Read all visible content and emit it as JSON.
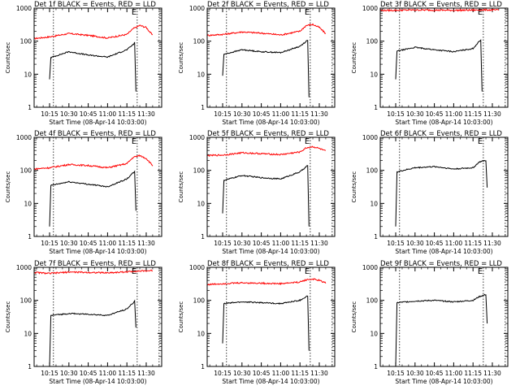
{
  "chart_data": [
    {
      "type": "line",
      "title": "Det 1f BLACK = Events, RED = LLD",
      "xlabel": "Start Time (08-Apr-14 10:03:00)",
      "ylabel": "Counts/sec",
      "x_ticks": [
        "10:15",
        "10:30",
        "10:45",
        "11:00",
        "11:15",
        "11:30"
      ],
      "y_ticks": [
        "1",
        "10",
        "100",
        "1000"
      ],
      "ylim": [
        1,
        1000
      ],
      "y_scale": "log",
      "marker": "E",
      "series": [
        {
          "color": "#ff0000",
          "x": [
            "10:03",
            "10:15",
            "10:30",
            "10:45",
            "11:00",
            "11:15",
            "11:20",
            "11:25",
            "11:30",
            "11:35"
          ],
          "y": [
            120,
            135,
            170,
            150,
            125,
            160,
            240,
            300,
            260,
            150
          ]
        },
        {
          "color": "#000000",
          "x": [
            "10:15",
            "10:16",
            "10:30",
            "10:45",
            "11:00",
            "11:15",
            "11:20",
            "11:21",
            "11:22"
          ],
          "y": [
            7,
            32,
            48,
            38,
            33,
            55,
            80,
            90,
            3
          ]
        }
      ]
    },
    {
      "type": "line",
      "title": "Det 2f BLACK = Events, RED = LLD",
      "xlabel": "Start Time (08-Apr-14 10:03:00)",
      "ylabel": "Counts/sec",
      "x_ticks": [
        "10:15",
        "10:30",
        "10:45",
        "11:00",
        "11:15",
        "11:30"
      ],
      "y_ticks": [
        "1",
        "10",
        "100",
        "1000"
      ],
      "ylim": [
        1,
        1000
      ],
      "y_scale": "log",
      "marker": "E",
      "series": [
        {
          "color": "#ff0000",
          "x": [
            "10:03",
            "10:15",
            "10:30",
            "10:45",
            "11:00",
            "11:15",
            "11:20",
            "11:25",
            "11:30",
            "11:35"
          ],
          "y": [
            150,
            160,
            190,
            175,
            155,
            200,
            300,
            320,
            260,
            170
          ]
        },
        {
          "color": "#000000",
          "x": [
            "10:15",
            "10:16",
            "10:30",
            "10:45",
            "11:00",
            "11:15",
            "11:20",
            "11:21",
            "11:22"
          ],
          "y": [
            9,
            40,
            55,
            48,
            45,
            70,
            100,
            105,
            2
          ]
        }
      ]
    },
    {
      "type": "line",
      "title": "Det 3f BLACK = Events, RED = LLD",
      "xlabel": "Start Time (08-Apr-14 10:03:00)",
      "ylabel": "Counts/sec",
      "x_ticks": [
        "10:15",
        "10:30",
        "10:45",
        "11:00",
        "11:15",
        "11:30"
      ],
      "y_ticks": [
        "1",
        "10",
        "100",
        "1000"
      ],
      "ylim": [
        1,
        1000
      ],
      "y_scale": "log",
      "marker": "E",
      "series": [
        {
          "color": "#ff0000",
          "x": [
            "10:03",
            "10:15",
            "10:30",
            "10:45",
            "11:00",
            "11:15",
            "11:20",
            "11:25",
            "11:30",
            "11:35"
          ],
          "y": [
            850,
            860,
            880,
            870,
            860,
            870,
            880,
            880,
            880,
            870
          ]
        },
        {
          "color": "#000000",
          "x": [
            "10:15",
            "10:16",
            "10:30",
            "10:45",
            "11:00",
            "11:15",
            "11:20",
            "11:21",
            "11:22"
          ],
          "y": [
            7,
            50,
            65,
            55,
            48,
            60,
            100,
            110,
            3
          ]
        }
      ]
    },
    {
      "type": "line",
      "title": "Det 4f BLACK = Events, RED = LLD",
      "xlabel": "Start Time (08-Apr-14 10:03:00)",
      "ylabel": "Counts/sec",
      "x_ticks": [
        "10:15",
        "10:30",
        "10:45",
        "11:00",
        "11:15",
        "11:30"
      ],
      "y_ticks": [
        "1",
        "10",
        "100",
        "1000"
      ],
      "ylim": [
        1,
        1000
      ],
      "y_scale": "log",
      "marker": "E",
      "series": [
        {
          "color": "#ff0000",
          "x": [
            "10:03",
            "10:15",
            "10:30",
            "10:45",
            "11:00",
            "11:15",
            "11:20",
            "11:25",
            "11:30",
            "11:35"
          ],
          "y": [
            110,
            120,
            150,
            140,
            120,
            160,
            250,
            280,
            230,
            140
          ]
        },
        {
          "color": "#000000",
          "x": [
            "10:15",
            "10:16",
            "10:30",
            "10:45",
            "11:00",
            "11:15",
            "11:20",
            "11:21",
            "11:22"
          ],
          "y": [
            2,
            35,
            45,
            38,
            32,
            55,
            85,
            90,
            6
          ]
        }
      ]
    },
    {
      "type": "line",
      "title": "Det 5f BLACK = Events, RED = LLD",
      "xlabel": "Start Time (08-Apr-14 10:03:00)",
      "ylabel": "Counts/sec",
      "x_ticks": [
        "10:15",
        "10:30",
        "10:45",
        "11:00",
        "11:15",
        "11:30"
      ],
      "y_ticks": [
        "1",
        "10",
        "100",
        "1000"
      ],
      "ylim": [
        1,
        1000
      ],
      "y_scale": "log",
      "marker": "E",
      "series": [
        {
          "color": "#ff0000",
          "x": [
            "10:03",
            "10:15",
            "10:30",
            "10:45",
            "11:00",
            "11:15",
            "11:20",
            "11:25",
            "11:30",
            "11:35"
          ],
          "y": [
            280,
            290,
            340,
            320,
            300,
            360,
            480,
            520,
            460,
            380
          ]
        },
        {
          "color": "#000000",
          "x": [
            "10:15",
            "10:16",
            "10:30",
            "10:45",
            "11:00",
            "11:15",
            "11:20",
            "11:21",
            "11:22"
          ],
          "y": [
            5,
            50,
            70,
            60,
            55,
            90,
            130,
            140,
            2
          ]
        }
      ]
    },
    {
      "type": "line",
      "title": "Det 6f BLACK = Events, RED = LLD",
      "xlabel": "Start Time (08-Apr-14 10:03:00)",
      "ylabel": "Counts/sec",
      "x_ticks": [
        "10:15",
        "10:30",
        "10:45",
        "11:00",
        "11:15",
        "11:30"
      ],
      "y_ticks": [
        "1",
        "10",
        "100",
        "1000"
      ],
      "ylim": [
        1,
        1000
      ],
      "y_scale": "log",
      "marker": "E",
      "series": [
        {
          "color": "#000000",
          "x": [
            "10:15",
            "10:16",
            "10:30",
            "10:45",
            "11:00",
            "11:15",
            "11:20",
            "11:25",
            "11:26"
          ],
          "y": [
            2,
            90,
            120,
            130,
            110,
            120,
            180,
            200,
            30
          ]
        }
      ]
    },
    {
      "type": "line",
      "title": "Det 7f BLACK = Events, RED = LLD",
      "xlabel": "Start Time (08-Apr-14 10:03:00)",
      "ylabel": "Counts/sec",
      "x_ticks": [
        "10:15",
        "10:30",
        "10:45",
        "11:00",
        "11:15",
        "11:30"
      ],
      "y_ticks": [
        "1",
        "10",
        "100",
        "1000"
      ],
      "ylim": [
        1,
        1000
      ],
      "y_scale": "log",
      "marker": "E",
      "series": [
        {
          "color": "#ff0000",
          "x": [
            "10:03",
            "10:15",
            "10:30",
            "10:45",
            "11:00",
            "11:15",
            "11:20",
            "11:25",
            "11:30",
            "11:35"
          ],
          "y": [
            700,
            650,
            720,
            700,
            680,
            730,
            760,
            770,
            780,
            800
          ]
        },
        {
          "color": "#000000",
          "x": [
            "10:15",
            "10:16",
            "10:30",
            "10:45",
            "11:00",
            "11:15",
            "11:20",
            "11:21",
            "11:22"
          ],
          "y": [
            1,
            35,
            40,
            38,
            35,
            55,
            85,
            95,
            15
          ]
        }
      ]
    },
    {
      "type": "line",
      "title": "Det 8f BLACK = Events, RED = LLD",
      "xlabel": "Start Time (08-Apr-14 10:03:00)",
      "ylabel": "Counts/sec",
      "x_ticks": [
        "10:15",
        "10:30",
        "10:45",
        "11:00",
        "11:15",
        "11:30"
      ],
      "y_ticks": [
        "1",
        "10",
        "100",
        "1000"
      ],
      "ylim": [
        1,
        1000
      ],
      "y_scale": "log",
      "marker": "E",
      "series": [
        {
          "color": "#ff0000",
          "x": [
            "10:03",
            "10:15",
            "10:30",
            "10:45",
            "11:00",
            "11:15",
            "11:20",
            "11:25",
            "11:30",
            "11:35"
          ],
          "y": [
            300,
            320,
            340,
            330,
            320,
            360,
            420,
            440,
            400,
            340
          ]
        },
        {
          "color": "#000000",
          "x": [
            "10:15",
            "10:16",
            "10:30",
            "10:45",
            "11:00",
            "11:15",
            "11:20",
            "11:21",
            "11:22"
          ],
          "y": [
            5,
            80,
            90,
            85,
            80,
            100,
            130,
            135,
            3
          ]
        }
      ]
    },
    {
      "type": "line",
      "title": "Det 9f BLACK = Events, RED = LLD",
      "xlabel": "Start Time (08-Apr-14 10:03:00)",
      "ylabel": "Counts/sec",
      "x_ticks": [
        "10:15",
        "10:30",
        "10:45",
        "11:00",
        "11:15",
        "11:30"
      ],
      "y_ticks": [
        "1",
        "10",
        "100",
        "1000"
      ],
      "ylim": [
        1,
        1000
      ],
      "y_scale": "log",
      "marker": "E",
      "series": [
        {
          "color": "#000000",
          "x": [
            "10:15",
            "10:16",
            "10:30",
            "10:45",
            "11:00",
            "11:15",
            "11:20",
            "11:25",
            "11:26"
          ],
          "y": [
            1,
            85,
            95,
            100,
            90,
            100,
            130,
            150,
            20
          ]
        }
      ]
    }
  ]
}
